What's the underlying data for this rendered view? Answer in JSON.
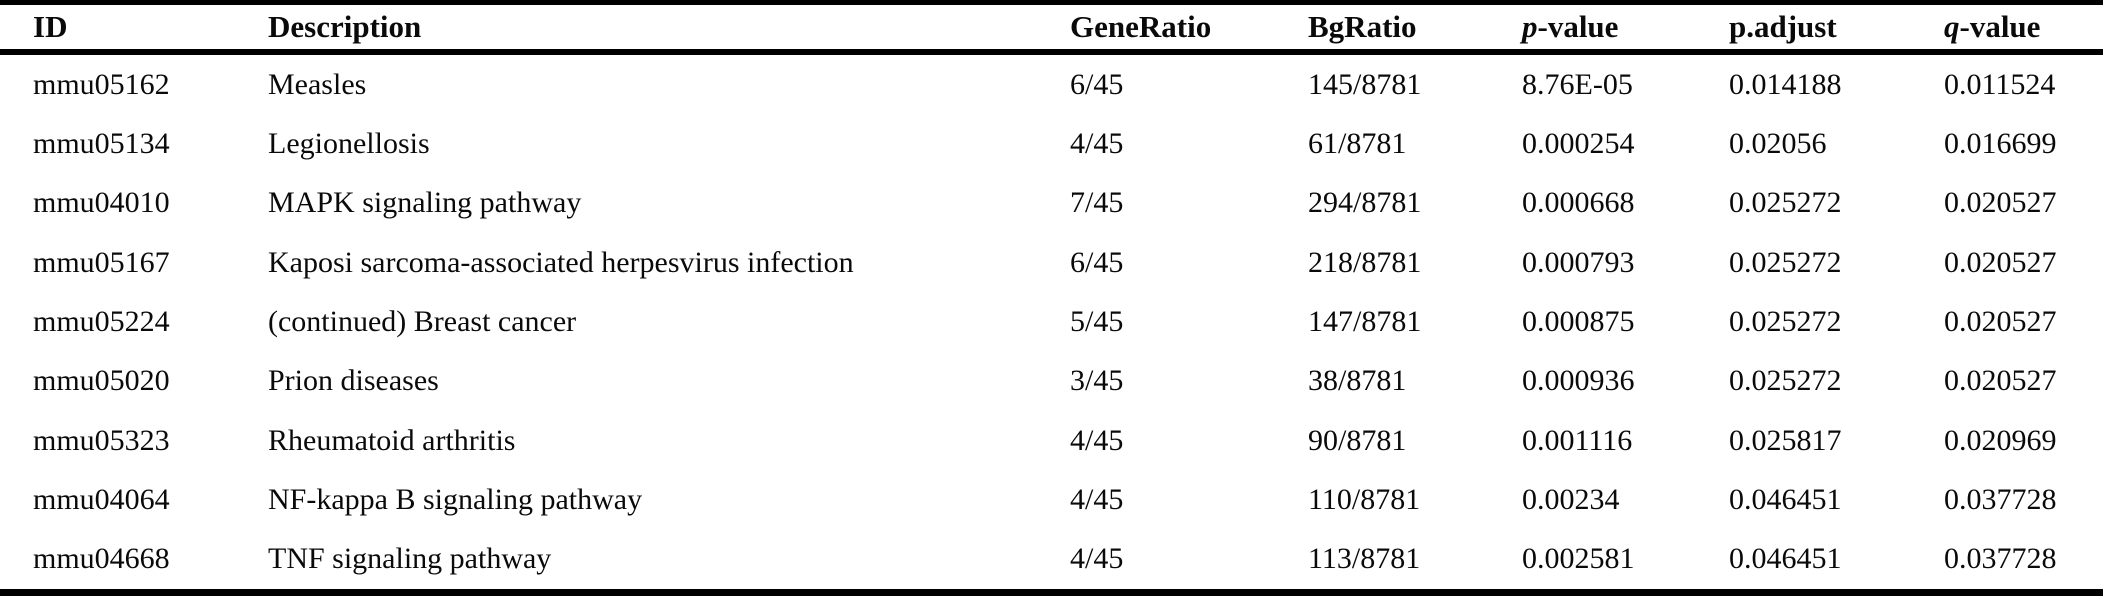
{
  "table": {
    "columns": [
      {
        "italic": "",
        "label": "ID"
      },
      {
        "italic": "",
        "label": "Description"
      },
      {
        "italic": "",
        "label": "GeneRatio"
      },
      {
        "italic": "",
        "label": "BgRatio"
      },
      {
        "italic": "p",
        "label": "-value"
      },
      {
        "italic": "",
        "label": "p.adjust"
      },
      {
        "italic": "q",
        "label": "-value"
      }
    ],
    "rows": [
      {
        "id": "mmu05162",
        "description": "Measles",
        "gene_ratio": "6/45",
        "bg_ratio": "145/8781",
        "p_value": "8.76E-05",
        "p_adjust": "0.014188",
        "q_value": "0.011524"
      },
      {
        "id": "mmu05134",
        "description": "Legionellosis",
        "gene_ratio": "4/45",
        "bg_ratio": "61/8781",
        "p_value": "0.000254",
        "p_adjust": "0.02056",
        "q_value": "0.016699"
      },
      {
        "id": "mmu04010",
        "description": "MAPK signaling pathway",
        "gene_ratio": "7/45",
        "bg_ratio": "294/8781",
        "p_value": "0.000668",
        "p_adjust": "0.025272",
        "q_value": "0.020527"
      },
      {
        "id": "mmu05167",
        "description": "Kaposi sarcoma-associated herpesvirus infection",
        "gene_ratio": "6/45",
        "bg_ratio": "218/8781",
        "p_value": "0.000793",
        "p_adjust": "0.025272",
        "q_value": "0.020527"
      },
      {
        "id": "mmu05224",
        "description": "(continued) Breast cancer",
        "gene_ratio": "5/45",
        "bg_ratio": "147/8781",
        "p_value": "0.000875",
        "p_adjust": "0.025272",
        "q_value": "0.020527"
      },
      {
        "id": "mmu05020",
        "description": "Prion diseases",
        "gene_ratio": "3/45",
        "bg_ratio": "38/8781",
        "p_value": "0.000936",
        "p_adjust": "0.025272",
        "q_value": "0.020527"
      },
      {
        "id": "mmu05323",
        "description": "Rheumatoid arthritis",
        "gene_ratio": "4/45",
        "bg_ratio": "90/8781",
        "p_value": "0.001116",
        "p_adjust": "0.025817",
        "q_value": "0.020969"
      },
      {
        "id": "mmu04064",
        "description": "NF-kappa B signaling pathway",
        "gene_ratio": "4/45",
        "bg_ratio": "110/8781",
        "p_value": "0.00234",
        "p_adjust": "0.046451",
        "q_value": "0.037728"
      },
      {
        "id": "mmu04668",
        "description": "TNF signaling pathway",
        "gene_ratio": "4/45",
        "bg_ratio": "113/8781",
        "p_value": "0.002581",
        "p_adjust": "0.046451",
        "q_value": "0.037728"
      }
    ]
  }
}
